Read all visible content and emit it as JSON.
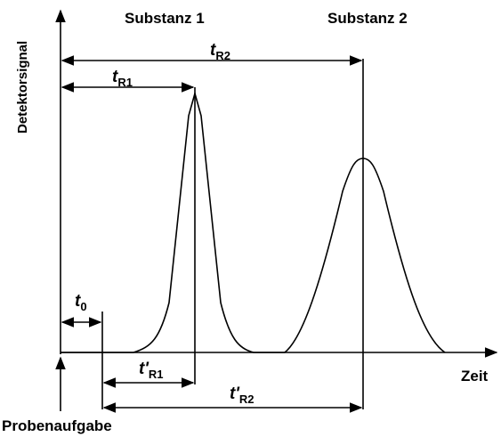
{
  "axes": {
    "y_label": "Detektorsignal",
    "x_label": "Zeit"
  },
  "peaks": [
    {
      "label": "Substanz 1"
    },
    {
      "label": "Substanz 2"
    }
  ],
  "times": {
    "tR2": {
      "symbol": "t",
      "sub": "R2"
    },
    "tR1": {
      "symbol": "t",
      "sub": "R1"
    },
    "t0": {
      "symbol": "t",
      "sub": "0"
    },
    "tpR1": {
      "symbol": "t'",
      "sub": "R1"
    },
    "tpR2": {
      "symbol": "t'",
      "sub": "R2"
    }
  },
  "injection": "Probenaufgabe"
}
